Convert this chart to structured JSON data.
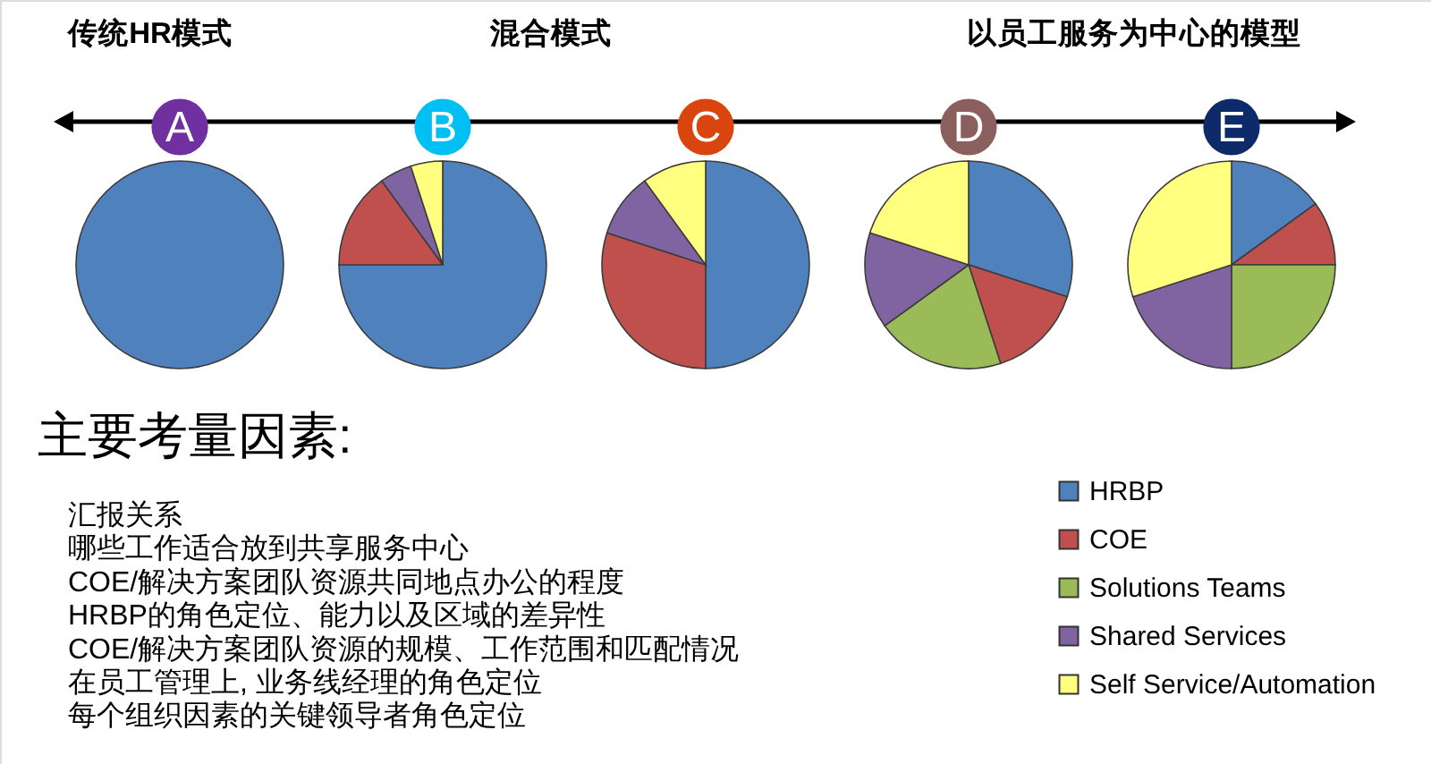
{
  "chart_data": [
    {
      "type": "pie",
      "categories": [
        "HRBP",
        "COE",
        "Solutions Teams",
        "Shared Services",
        "Self Service/Automation"
      ],
      "colors": [
        "#4f81bd",
        "#c0504d",
        "#9bbb59",
        "#8064a2",
        "#ffff80"
      ],
      "series": [
        {
          "name": "A",
          "values": [
            100,
            0,
            0,
            0,
            0
          ]
        },
        {
          "name": "B",
          "values": [
            75,
            15,
            0,
            5,
            5
          ]
        },
        {
          "name": "C",
          "values": [
            50,
            30,
            0,
            10,
            10
          ]
        },
        {
          "name": "D",
          "values": [
            30,
            15,
            20,
            15,
            20
          ]
        },
        {
          "name": "E",
          "values": [
            15,
            10,
            25,
            20,
            30
          ]
        }
      ],
      "legend": "bottom right",
      "annotations": [
        "传统HR模式",
        "混合模式",
        "以员工服务为中心的模型"
      ]
    },
    {
      "type": "other",
      "title": "主要考量因素:",
      "annotations": [
        "汇报关系",
        "哪些工作适合放到共享服务中心",
        "COE/解决方案团队资源共同地点办公的程度",
        "HRBP的角色定位、能力以及区域的差异性",
        "COE/解决方案团队资源的规模、工作范围和匹配情况",
        "在员工管理上, 业务线经理的角色定位",
        "每个组织因素的关键领导者角色定位"
      ]
    }
  ]
}
